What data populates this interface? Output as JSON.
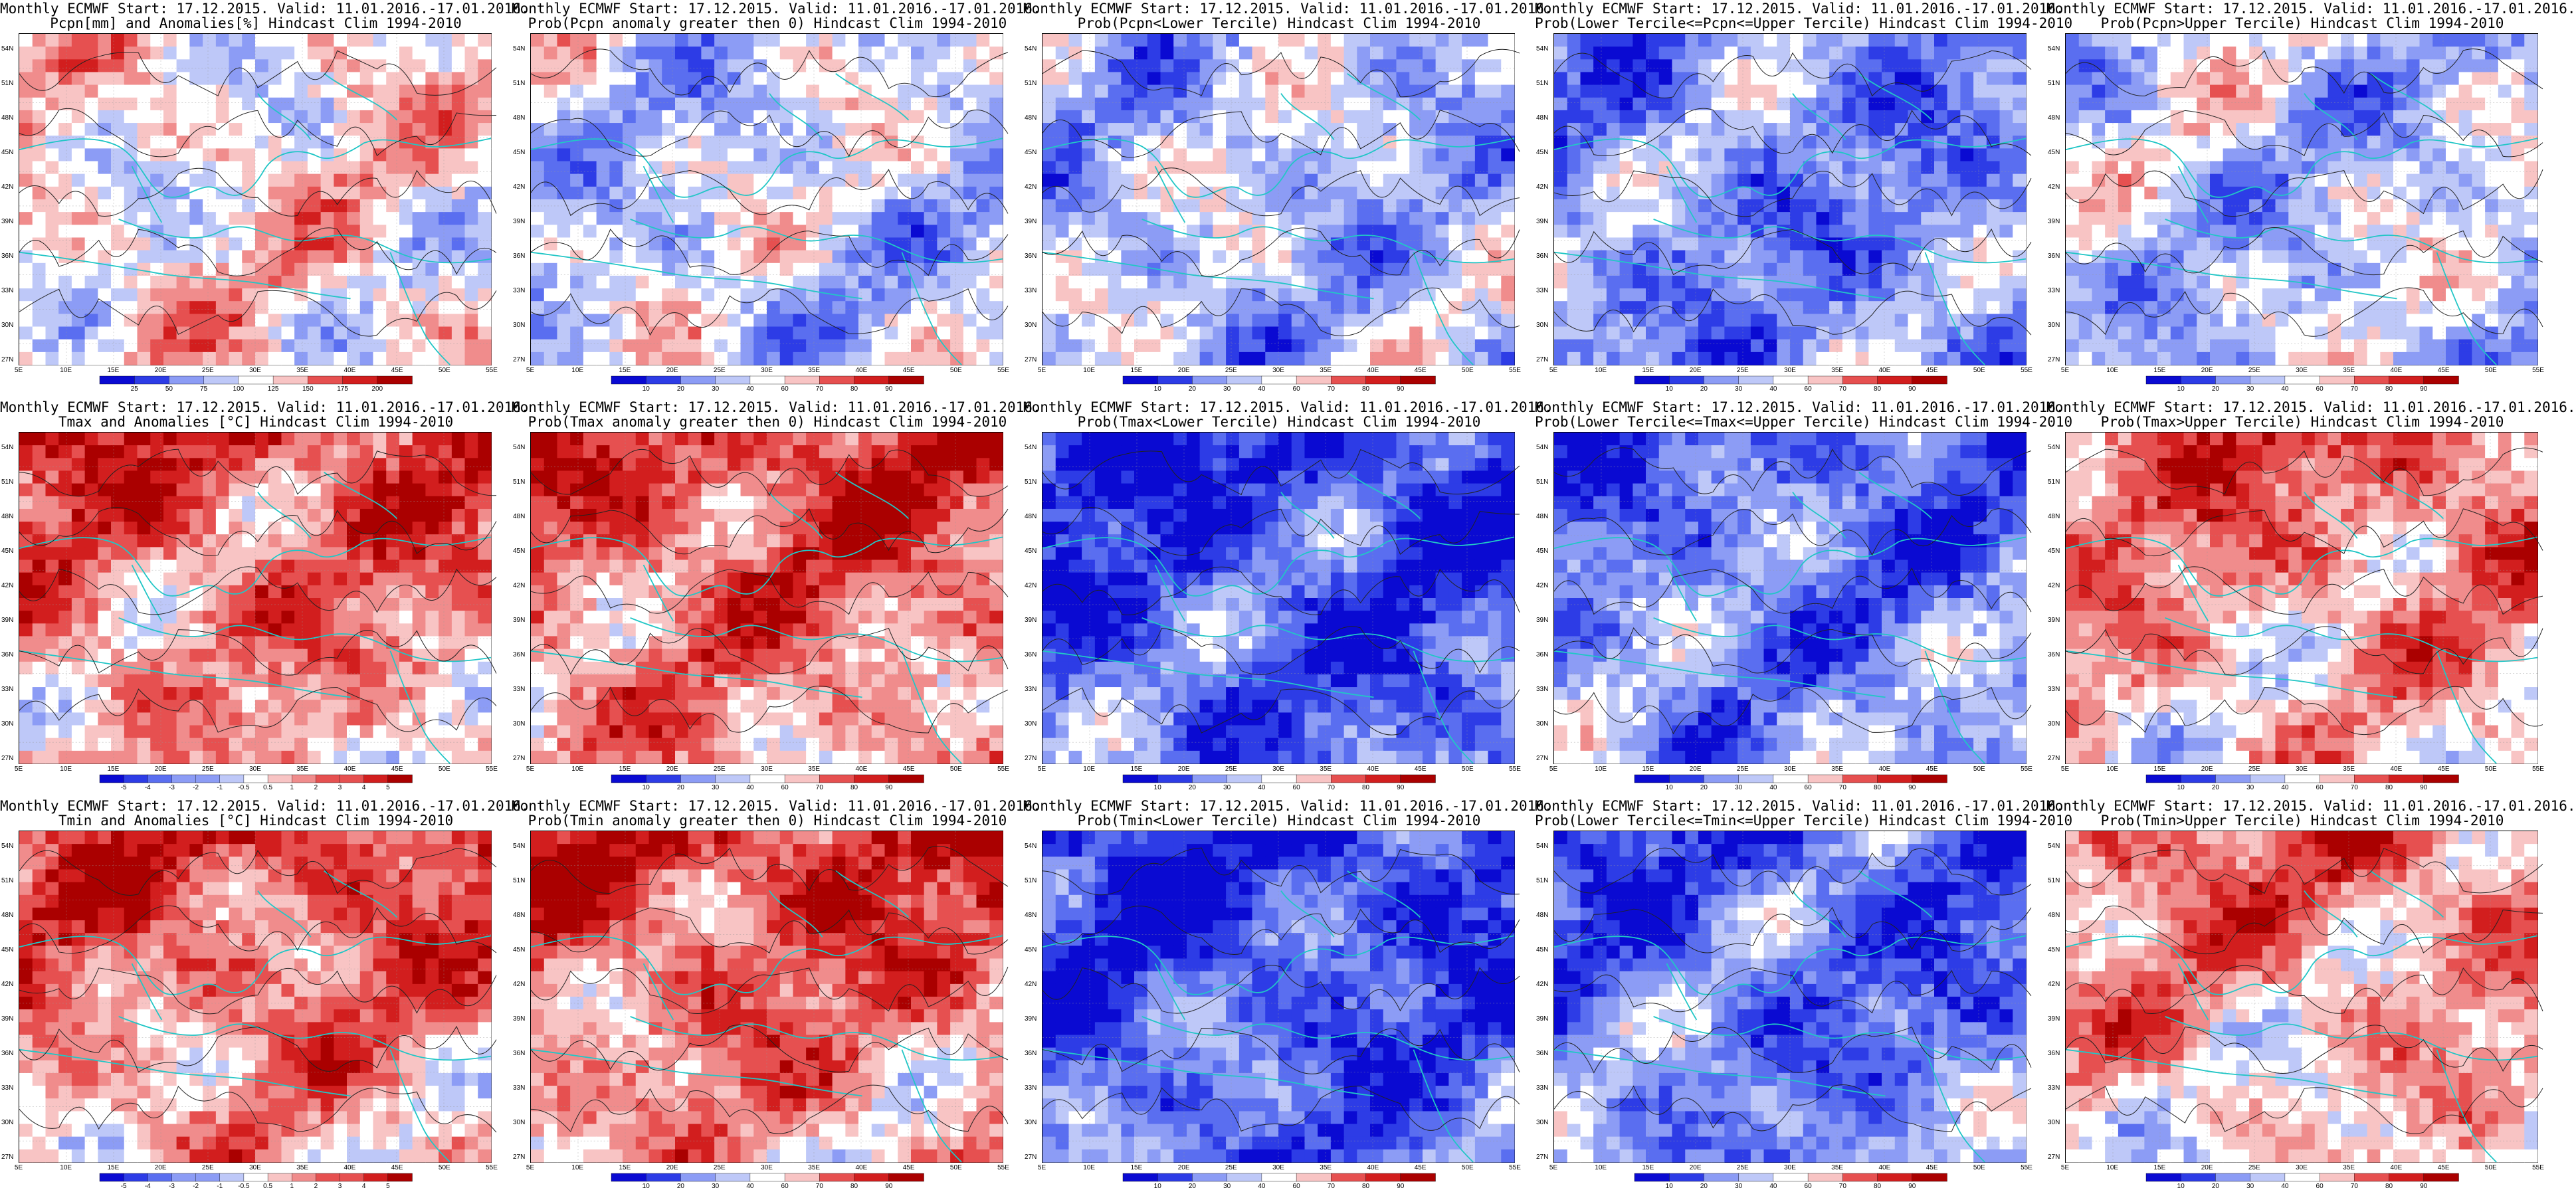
{
  "lat_labels": [
    "54N",
    "51N",
    "48N",
    "45N",
    "42N",
    "39N",
    "36N",
    "33N",
    "30N",
    "27N"
  ],
  "lon_labels": [
    "5E",
    "10E",
    "15E",
    "20E",
    "25E",
    "30E",
    "35E",
    "40E",
    "45E",
    "50E",
    "55E"
  ],
  "colors": {
    "coast": "#22c6c6",
    "contour": "#222222",
    "ramp": [
      "#0a0ad2",
      "#2d3ce6",
      "#5a6ef0",
      "#8c9cf5",
      "#bec8f8",
      "#ffffff",
      "#f8c4c4",
      "#f08c8c",
      "#e65050",
      "#d21e1e",
      "#aa0000"
    ]
  },
  "rows": [
    {
      "panels": [
        {
          "title1": "Monthly ECMWF Start: 17.12.2015. Valid: 11.01.2016.-17.01.2016.",
          "title2": "Pcpn[mm] and Anomalies[%] Hindcast Clim 1994-2010",
          "bias": 0.1,
          "cbar": [
            "25",
            "50",
            "75",
            "100",
            "125",
            "150",
            "175",
            "200"
          ]
        },
        {
          "title1": "Monthly ECMWF Start: 17.12.2015. Valid: 11.01.2016.-17.01.2016.",
          "title2": "Prob(Pcpn anomaly greater then 0) Hindcast Clim 1994-2010",
          "bias": -0.15,
          "cbar": [
            "10",
            "20",
            "30",
            "40",
            "60",
            "70",
            "80",
            "90"
          ]
        },
        {
          "title1": "Monthly ECMWF Start: 17.12.2015. Valid: 11.01.2016.-17.01.2016.",
          "title2": "Prob(Pcpn<Lower Tercile) Hindcast Clim 1994-2010",
          "bias": -0.25,
          "cbar": [
            "10",
            "20",
            "30",
            "40",
            "60",
            "70",
            "80",
            "90"
          ]
        },
        {
          "title1": "Monthly ECMWF Start: 17.12.2015. Valid: 11.01.2016.-17.01.2016.",
          "title2": "Prob(Lower Tercile<=Pcpn<=Upper Tercile) Hindcast Clim 1994-2010",
          "bias": -0.45,
          "cbar": [
            "10",
            "20",
            "30",
            "40",
            "60",
            "70",
            "80",
            "90"
          ]
        },
        {
          "title1": "Monthly ECMWF Start: 17.12.2015. Valid: 11.01.2016.-17.01.2016.",
          "title2": "Prob(Pcpn>Upper Tercile) Hindcast Clim 1994-2010",
          "bias": -0.2,
          "cbar": [
            "10",
            "20",
            "30",
            "40",
            "60",
            "70",
            "80",
            "90"
          ]
        }
      ]
    },
    {
      "panels": [
        {
          "title1": "Monthly ECMWF Start: 17.12.2015. Valid: 11.01.2016.-17.01.2016.",
          "title2": "Tmax and Anomalies [°C] Hindcast Clim 1994-2010",
          "bias": 0.45,
          "cbar": [
            "-5",
            "-4",
            "-3",
            "-2",
            "-1",
            "-0.5",
            "0.5",
            "1",
            "2",
            "3",
            "4",
            "5"
          ]
        },
        {
          "title1": "Monthly ECMWF Start: 17.12.2015. Valid: 11.01.2016.-17.01.2016.",
          "title2": "Prob(Tmax anomaly greater then 0) Hindcast Clim 1994-2010",
          "bias": 0.5,
          "cbar": [
            "10",
            "20",
            "30",
            "40",
            "60",
            "70",
            "80",
            "90"
          ]
        },
        {
          "title1": "Monthly ECMWF Start: 17.12.2015. Valid: 11.01.2016.-17.01.2016.",
          "title2": "Prob(Tmax<Lower Tercile) Hindcast Clim 1994-2010",
          "bias": -0.7,
          "cbar": [
            "10",
            "20",
            "30",
            "40",
            "60",
            "70",
            "80",
            "90"
          ]
        },
        {
          "title1": "Monthly ECMWF Start: 17.12.2015. Valid: 11.01.2016.-17.01.2016.",
          "title2": "Prob(Lower Tercile<=Tmax<=Upper Tercile) Hindcast Clim 1994-2010",
          "bias": -0.5,
          "cbar": [
            "10",
            "20",
            "30",
            "40",
            "60",
            "70",
            "80",
            "90"
          ]
        },
        {
          "title1": "Monthly ECMWF Start: 17.12.2015. Valid: 11.01.2016.-17.01.2016.",
          "title2": "Prob(Tmax>Upper Tercile) Hindcast Clim 1994-2010",
          "bias": 0.35,
          "cbar": [
            "10",
            "20",
            "30",
            "40",
            "60",
            "70",
            "80",
            "90"
          ]
        }
      ]
    },
    {
      "panels": [
        {
          "title1": "Monthly ECMWF Start: 17.12.2015. Valid: 11.01.2016.-17.01.2016.",
          "title2": "Tmin and Anomalies [°C] Hindcast Clim 1994-2010",
          "bias": 0.45,
          "cbar": [
            "-5",
            "-4",
            "-3",
            "-2",
            "-1",
            "-0.5",
            "0.5",
            "1",
            "2",
            "3",
            "4",
            "5"
          ]
        },
        {
          "title1": "Monthly ECMWF Start: 17.12.2015. Valid: 11.01.2016.-17.01.2016.",
          "title2": "Prob(Tmin anomaly greater then 0) Hindcast Clim 1994-2010",
          "bias": 0.5,
          "cbar": [
            "10",
            "20",
            "30",
            "40",
            "60",
            "70",
            "80",
            "90"
          ]
        },
        {
          "title1": "Monthly ECMWF Start: 17.12.2015. Valid: 11.01.2016.-17.01.2016.",
          "title2": "Prob(Tmin<Lower Tercile) Hindcast Clim 1994-2010",
          "bias": -0.7,
          "cbar": [
            "10",
            "20",
            "30",
            "40",
            "60",
            "70",
            "80",
            "90"
          ]
        },
        {
          "title1": "Monthly ECMWF Start: 17.12.2015. Valid: 11.01.2016.-17.01.2016.",
          "title2": "Prob(Lower Tercile<=Tmin<=Upper Tercile) Hindcast Clim 1994-2010",
          "bias": -0.55,
          "cbar": [
            "10",
            "20",
            "30",
            "40",
            "60",
            "70",
            "80",
            "90"
          ]
        },
        {
          "title1": "Monthly ECMWF Start: 17.12.2015. Valid: 11.01.2016.-17.01.2016.",
          "title2": "Prob(Tmin>Upper Tercile) Hindcast Clim 1994-2010",
          "bias": 0.3,
          "cbar": [
            "10",
            "20",
            "30",
            "40",
            "60",
            "70",
            "80",
            "90"
          ]
        }
      ]
    }
  ]
}
